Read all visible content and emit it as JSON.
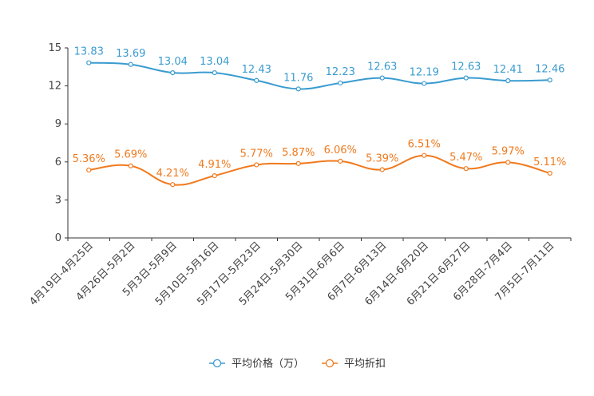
{
  "chart_data": {
    "type": "line",
    "title": "",
    "xlabel": "",
    "ylabel": "",
    "ylim": [
      0,
      15
    ],
    "yticks": [
      0,
      3,
      6,
      9,
      12,
      15
    ],
    "categories": [
      "4月19日-4月25日",
      "4月26日-5月2日",
      "5月3日-5月9日",
      "5月10日-5月16日",
      "5月17日-5月23日",
      "5月24日-5月30日",
      "5月31日-6月6日",
      "6月7日-6月13日",
      "6月14日-6月20日",
      "6月21日-6月27日",
      "6月28日-7月4日",
      "7月5日-7月11日"
    ],
    "series": [
      {
        "name": "平均价格（万）",
        "color": "#3a9bd0",
        "values": [
          13.83,
          13.69,
          13.04,
          13.04,
          12.43,
          11.76,
          12.23,
          12.63,
          12.19,
          12.63,
          12.41,
          12.46
        ],
        "labels": [
          "13.83",
          "13.69",
          "13.04",
          "13.04",
          "12.43",
          "11.76",
          "12.23",
          "12.63",
          "12.19",
          "12.63",
          "12.41",
          "12.46"
        ]
      },
      {
        "name": "平均折扣",
        "color": "#f07a1e",
        "values": [
          5.36,
          5.69,
          4.21,
          4.91,
          5.77,
          5.87,
          6.06,
          5.39,
          6.51,
          5.47,
          5.97,
          5.11
        ],
        "labels": [
          "5.36%",
          "5.69%",
          "4.21%",
          "4.91%",
          "5.77%",
          "5.87%",
          "6.06%",
          "5.39%",
          "6.51%",
          "5.47%",
          "5.97%",
          "5.11%"
        ]
      }
    ],
    "legend": "bottom-center"
  }
}
